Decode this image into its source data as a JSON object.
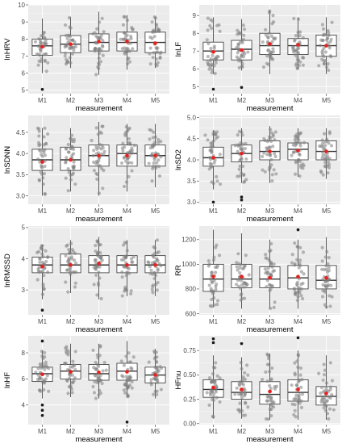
{
  "chart_data": [
    {
      "type": "box",
      "ylabel": "lnHRV",
      "xlabel": "measurement",
      "categories": [
        "M1",
        "M2",
        "M3",
        "M4",
        "M5"
      ],
      "ylim": [
        4.8,
        10.0
      ],
      "yticks": [
        5,
        6,
        7,
        8,
        9,
        10
      ],
      "boxes": [
        {
          "min": 6.0,
          "q1": 7.05,
          "median": 7.6,
          "q3": 8.0,
          "max": 9.2,
          "mean": 7.55,
          "outliers": [
            5.05
          ]
        },
        {
          "min": 6.3,
          "q1": 7.2,
          "median": 7.7,
          "q3": 8.2,
          "max": 9.3,
          "mean": 7.7,
          "outliers": []
        },
        {
          "min": 5.9,
          "q1": 7.3,
          "median": 7.8,
          "q3": 8.3,
          "max": 9.6,
          "mean": 7.85,
          "outliers": []
        },
        {
          "min": 6.2,
          "q1": 7.3,
          "median": 7.8,
          "q3": 8.4,
          "max": 9.4,
          "mean": 7.85,
          "outliers": []
        },
        {
          "min": 6.3,
          "q1": 7.2,
          "median": 7.8,
          "q3": 8.4,
          "max": 9.3,
          "mean": 7.75,
          "outliers": []
        }
      ]
    },
    {
      "type": "box",
      "ylabel": "lnLF",
      "xlabel": "measurement",
      "categories": [
        "M1",
        "M2",
        "M3",
        "M4",
        "M5"
      ],
      "ylim": [
        4.6,
        9.6
      ],
      "yticks": [
        5,
        6,
        7,
        8,
        9
      ],
      "boxes": [
        {
          "min": 5.7,
          "q1": 6.5,
          "median": 7.0,
          "q3": 7.5,
          "max": 8.9,
          "mean": 6.95,
          "outliers": [
            4.85
          ]
        },
        {
          "min": 5.9,
          "q1": 6.5,
          "median": 7.1,
          "q3": 7.6,
          "max": 8.8,
          "mean": 7.05,
          "outliers": [
            4.95
          ]
        },
        {
          "min": 5.7,
          "q1": 6.8,
          "median": 7.3,
          "q3": 8.0,
          "max": 9.3,
          "mean": 7.4,
          "outliers": []
        },
        {
          "min": 6.0,
          "q1": 6.8,
          "median": 7.3,
          "q3": 7.7,
          "max": 8.9,
          "mean": 7.35,
          "outliers": []
        },
        {
          "min": 5.7,
          "q1": 6.7,
          "median": 7.3,
          "q3": 7.9,
          "max": 8.9,
          "mean": 7.3,
          "outliers": []
        }
      ]
    },
    {
      "type": "box",
      "ylabel": "lnSDNN",
      "xlabel": "measurement",
      "categories": [
        "M1",
        "M2",
        "M3",
        "M4",
        "M5"
      ],
      "ylim": [
        2.8,
        4.9
      ],
      "yticks": [
        3.0,
        3.5,
        4.0,
        4.5
      ],
      "boxes": [
        {
          "min": 3.0,
          "q1": 3.6,
          "median": 3.85,
          "q3": 4.1,
          "max": 4.6,
          "mean": 3.8,
          "outliers": []
        },
        {
          "min": 3.1,
          "q1": 3.6,
          "median": 3.85,
          "q3": 4.15,
          "max": 4.6,
          "mean": 3.85,
          "outliers": []
        },
        {
          "min": 3.0,
          "q1": 3.7,
          "median": 3.95,
          "q3": 4.2,
          "max": 4.75,
          "mean": 3.95,
          "outliers": []
        },
        {
          "min": 3.1,
          "q1": 3.7,
          "median": 4.0,
          "q3": 4.2,
          "max": 4.7,
          "mean": 3.95,
          "outliers": []
        },
        {
          "min": 3.2,
          "q1": 3.7,
          "median": 3.95,
          "q3": 4.2,
          "max": 4.7,
          "mean": 3.95,
          "outliers": []
        }
      ]
    },
    {
      "type": "box",
      "ylabel": "lnSD2",
      "xlabel": "measurement",
      "categories": [
        "M1",
        "M2",
        "M3",
        "M4",
        "M5"
      ],
      "ylim": [
        2.95,
        5.05
      ],
      "yticks": [
        3.0,
        3.5,
        4.0,
        4.5,
        5.0
      ],
      "boxes": [
        {
          "min": 3.3,
          "q1": 3.85,
          "median": 4.05,
          "q3": 4.3,
          "max": 4.7,
          "mean": 4.05,
          "outliers": [
            3.0
          ]
        },
        {
          "min": 3.45,
          "q1": 3.95,
          "median": 4.15,
          "q3": 4.35,
          "max": 4.75,
          "mean": 4.15,
          "outliers": [
            3.05,
            3.12
          ]
        },
        {
          "min": 3.45,
          "q1": 4.0,
          "median": 4.2,
          "q3": 4.45,
          "max": 4.8,
          "mean": 4.2,
          "outliers": []
        },
        {
          "min": 3.6,
          "q1": 4.0,
          "median": 4.25,
          "q3": 4.4,
          "max": 4.75,
          "mean": 4.22,
          "outliers": []
        },
        {
          "min": 3.55,
          "q1": 4.0,
          "median": 4.2,
          "q3": 4.45,
          "max": 4.75,
          "mean": 4.2,
          "outliers": []
        }
      ]
    },
    {
      "type": "box",
      "ylabel": "lnRMSSD",
      "xlabel": "measurement",
      "categories": [
        "M1",
        "M2",
        "M3",
        "M4",
        "M5"
      ],
      "ylim": [
        2.2,
        5.05
      ],
      "yticks": [
        3,
        4,
        5
      ],
      "boxes": [
        {
          "min": 2.7,
          "q1": 3.55,
          "median": 3.8,
          "q3": 4.05,
          "max": 4.45,
          "mean": 3.75,
          "outliers": [
            2.35
          ]
        },
        {
          "min": 2.9,
          "q1": 3.55,
          "median": 3.8,
          "q3": 4.15,
          "max": 4.6,
          "mean": 3.8,
          "outliers": []
        },
        {
          "min": 2.7,
          "q1": 3.55,
          "median": 3.8,
          "q3": 4.1,
          "max": 4.7,
          "mean": 3.85,
          "outliers": []
        },
        {
          "min": 2.8,
          "q1": 3.55,
          "median": 3.8,
          "q3": 4.1,
          "max": 4.6,
          "mean": 3.8,
          "outliers": []
        },
        {
          "min": 2.8,
          "q1": 3.55,
          "median": 3.8,
          "q3": 4.1,
          "max": 4.6,
          "mean": 3.8,
          "outliers": []
        }
      ]
    },
    {
      "type": "box",
      "ylabel": "RR",
      "xlabel": "measurement",
      "categories": [
        "M1",
        "M2",
        "M3",
        "M4",
        "M5"
      ],
      "ylim": [
        590,
        1310
      ],
      "yticks": [
        600,
        800,
        1000,
        1200
      ],
      "boxes": [
        {
          "min": 650,
          "q1": 780,
          "median": 880,
          "q3": 1000,
          "max": 1280,
          "mean": 900,
          "outliers": []
        },
        {
          "min": 640,
          "q1": 810,
          "median": 880,
          "q3": 1000,
          "max": 1250,
          "mean": 900,
          "outliers": []
        },
        {
          "min": 640,
          "q1": 810,
          "median": 880,
          "q3": 980,
          "max": 1200,
          "mean": 890,
          "outliers": []
        },
        {
          "min": 640,
          "q1": 800,
          "median": 890,
          "q3": 990,
          "max": 1200,
          "mean": 900,
          "outliers": [
            1280
          ]
        },
        {
          "min": 640,
          "q1": 800,
          "median": 870,
          "q3": 990,
          "max": 1220,
          "mean": 890,
          "outliers": []
        }
      ]
    },
    {
      "type": "box",
      "ylabel": "lnHF",
      "xlabel": "measurement",
      "categories": [
        "M1",
        "M2",
        "M3",
        "M4",
        "M5"
      ],
      "ylim": [
        2.5,
        9.3
      ],
      "yticks": [
        4,
        6,
        8
      ],
      "boxes": [
        {
          "min": 4.5,
          "q1": 5.8,
          "median": 6.4,
          "q3": 6.9,
          "max": 8.2,
          "mean": 6.35,
          "outliers": [
            3.2,
            3.6,
            4.0,
            8.9
          ]
        },
        {
          "min": 4.6,
          "q1": 6.0,
          "median": 6.6,
          "q3": 7.1,
          "max": 8.7,
          "mean": 6.55,
          "outliers": []
        },
        {
          "min": 4.5,
          "q1": 5.9,
          "median": 6.4,
          "q3": 7.1,
          "max": 8.7,
          "mean": 6.5,
          "outliers": []
        },
        {
          "min": 4.6,
          "q1": 5.9,
          "median": 6.6,
          "q3": 7.2,
          "max": 8.9,
          "mean": 6.55,
          "outliers": [
            2.7
          ]
        },
        {
          "min": 4.5,
          "q1": 5.7,
          "median": 6.3,
          "q3": 6.9,
          "max": 8.3,
          "mean": 6.3,
          "outliers": []
        }
      ]
    },
    {
      "type": "box",
      "ylabel": "HFnu",
      "xlabel": "measurement",
      "categories": [
        "M1",
        "M2",
        "M3",
        "M4",
        "M5"
      ],
      "ylim": [
        -0.01,
        0.9
      ],
      "yticks": [
        0.0,
        0.25,
        0.5,
        0.75
      ],
      "boxes": [
        {
          "min": 0.05,
          "q1": 0.27,
          "median": 0.35,
          "q3": 0.45,
          "max": 0.7,
          "mean": 0.37,
          "outliers": [
            0.83,
            0.87
          ]
        },
        {
          "min": 0.05,
          "q1": 0.25,
          "median": 0.32,
          "q3": 0.43,
          "max": 0.68,
          "mean": 0.35,
          "outliers": [
            0.82
          ]
        },
        {
          "min": 0.04,
          "q1": 0.2,
          "median": 0.3,
          "q3": 0.43,
          "max": 0.72,
          "mean": 0.33,
          "outliers": []
        },
        {
          "min": 0.04,
          "q1": 0.23,
          "median": 0.32,
          "q3": 0.45,
          "max": 0.75,
          "mean": 0.35,
          "outliers": [
            0.88
          ]
        },
        {
          "min": 0.04,
          "q1": 0.19,
          "median": 0.28,
          "q3": 0.38,
          "max": 0.7,
          "mean": 0.31,
          "outliers": []
        }
      ]
    }
  ],
  "colors": {
    "panel_background": "#ebebeb",
    "gridline": "#ffffff",
    "box_fill": "#ffffff",
    "box_stroke": "#333333",
    "jitter_point": "#7f7f7f",
    "mean_marker": "#e8211f",
    "outlier": "#1a1a1a"
  }
}
